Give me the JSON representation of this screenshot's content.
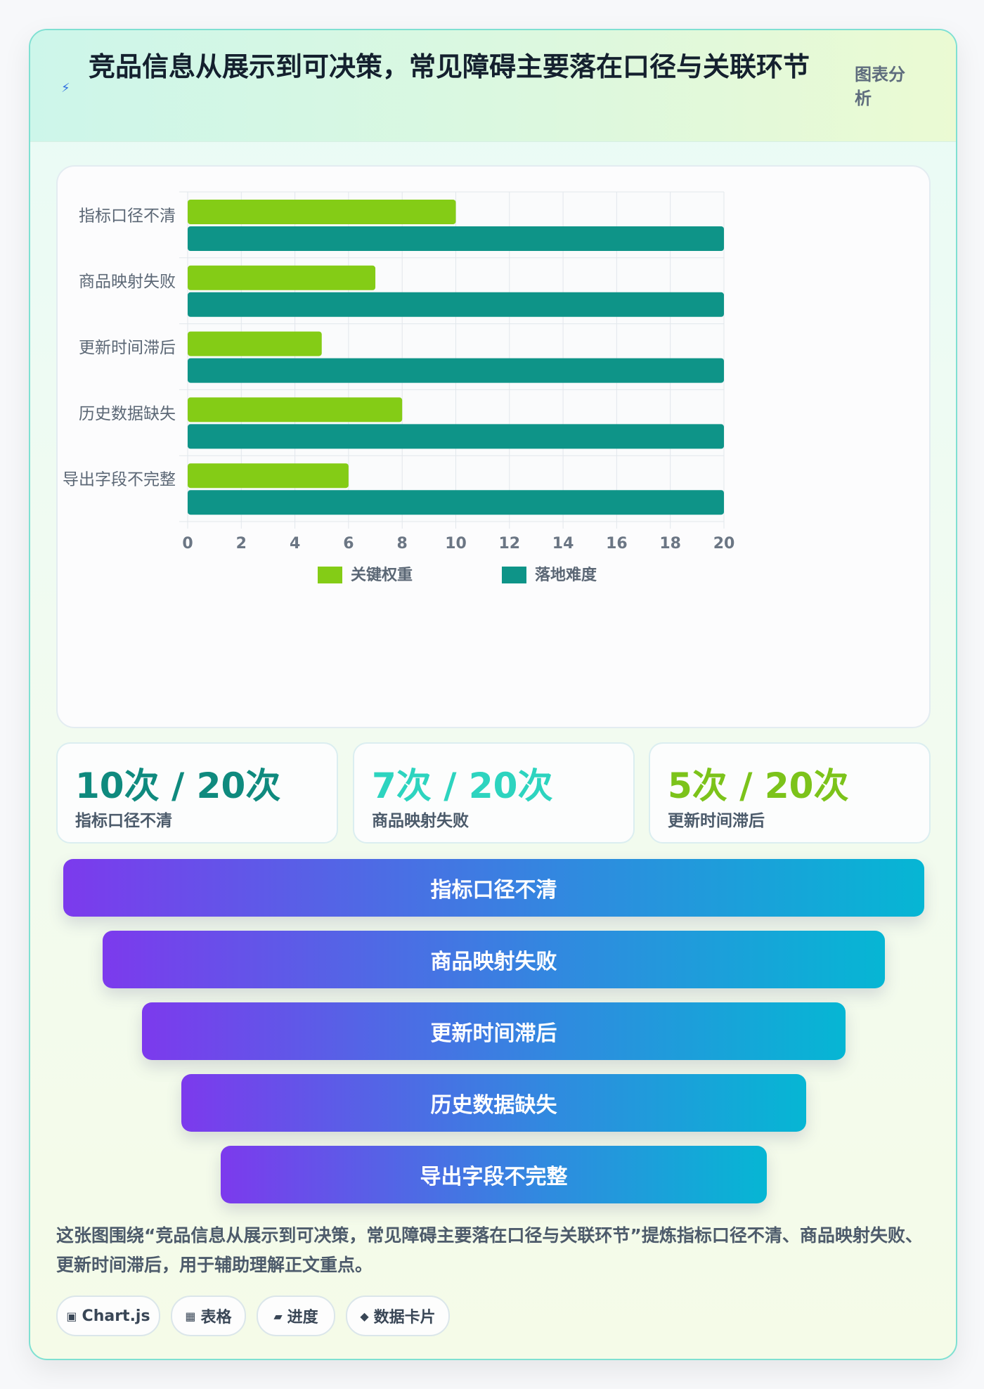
{
  "header": {
    "icon": "lightning-icon",
    "title": "竞品信息从展示到可决策，常见障碍主要落在口径与关联环节",
    "tag": "图表分析"
  },
  "chart_data": {
    "type": "bar",
    "orientation": "horizontal",
    "categories": [
      "指标口径不清",
      "商品映射失败",
      "更新时间滞后",
      "历史数据缺失",
      "导出字段不完整"
    ],
    "series": [
      {
        "name": "关键权重",
        "values": [
          10,
          7,
          5,
          8,
          6
        ],
        "color": "#84cc16"
      },
      {
        "name": "落地难度",
        "values": [
          20,
          20,
          20,
          20,
          20
        ],
        "color": "#0e9488"
      }
    ],
    "xlim": [
      0,
      20
    ],
    "xticks": [
      0,
      2,
      4,
      6,
      8,
      10,
      12,
      14,
      16,
      18,
      20
    ],
    "grid": true,
    "legend_position": "bottom"
  },
  "kpis": [
    {
      "value": "10次 / 20次",
      "label": "指标口径不清",
      "color": "#0f8a7e"
    },
    {
      "value": "7次 / 20次",
      "label": "商品映射失败",
      "color": "#2dd4bf"
    },
    {
      "value": "5次 / 20次",
      "label": "更新时间滞后",
      "color": "#7cc31a"
    }
  ],
  "funnel": [
    "指标口径不清",
    "商品映射失败",
    "更新时间滞后",
    "历史数据缺失",
    "导出字段不完整"
  ],
  "summary": "这张图围绕“竞品信息从展示到可决策，常见障碍主要落在口径与关联环节”提炼指标口径不清、商品映射失败、更新时间滞后，用于辅助理解正文重点。",
  "chips": [
    {
      "icon": "chart-icon",
      "glyph": "▣",
      "label": "Chart.js"
    },
    {
      "icon": "table-icon",
      "glyph": "▦",
      "label": "表格"
    },
    {
      "icon": "progress-icon",
      "glyph": "▰",
      "label": "进度"
    },
    {
      "icon": "data-card-icon",
      "glyph": "◆",
      "label": "数据卡片"
    }
  ]
}
